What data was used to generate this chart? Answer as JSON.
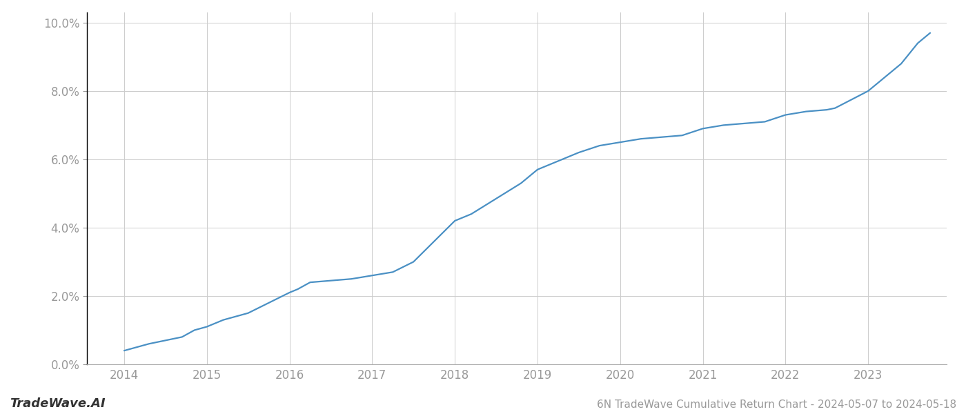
{
  "title": "6N TradeWave Cumulative Return Chart - 2024-05-07 to 2024-05-18",
  "watermark": "TradeWave.AI",
  "line_color": "#4a90c4",
  "background_color": "#ffffff",
  "grid_color": "#cccccc",
  "x_years": [
    2014,
    2015,
    2016,
    2017,
    2018,
    2019,
    2020,
    2021,
    2022,
    2023
  ],
  "x_data": [
    2014.0,
    2014.15,
    2014.3,
    2014.5,
    2014.7,
    2014.85,
    2015.0,
    2015.2,
    2015.5,
    2015.75,
    2016.0,
    2016.1,
    2016.25,
    2016.5,
    2016.75,
    2017.0,
    2017.25,
    2017.5,
    2017.75,
    2018.0,
    2018.2,
    2018.4,
    2018.6,
    2018.8,
    2019.0,
    2019.2,
    2019.5,
    2019.75,
    2020.0,
    2020.25,
    2020.5,
    2020.75,
    2021.0,
    2021.25,
    2021.5,
    2021.75,
    2022.0,
    2022.25,
    2022.5,
    2022.6,
    2023.0,
    2023.15,
    2023.4,
    2023.6,
    2023.75
  ],
  "y_data": [
    0.004,
    0.005,
    0.006,
    0.007,
    0.008,
    0.01,
    0.011,
    0.013,
    0.015,
    0.018,
    0.021,
    0.022,
    0.024,
    0.0245,
    0.025,
    0.026,
    0.027,
    0.03,
    0.036,
    0.042,
    0.044,
    0.047,
    0.05,
    0.053,
    0.057,
    0.059,
    0.062,
    0.064,
    0.065,
    0.066,
    0.0665,
    0.067,
    0.069,
    0.07,
    0.0705,
    0.071,
    0.073,
    0.074,
    0.0745,
    0.075,
    0.08,
    0.083,
    0.088,
    0.094,
    0.097
  ],
  "ylim": [
    0.0,
    0.103
  ],
  "xlim": [
    2013.55,
    2023.95
  ],
  "yticks": [
    0.0,
    0.02,
    0.04,
    0.06,
    0.08,
    0.1
  ],
  "ytick_labels": [
    "0.0%",
    "2.0%",
    "4.0%",
    "6.0%",
    "8.0%",
    "10.0%"
  ],
  "tick_color": "#999999",
  "label_fontsize": 12,
  "watermark_fontsize": 13,
  "footer_fontsize": 11,
  "line_width": 1.6,
  "spine_color": "#000000",
  "bottom_spine_color": "#aaaaaa"
}
